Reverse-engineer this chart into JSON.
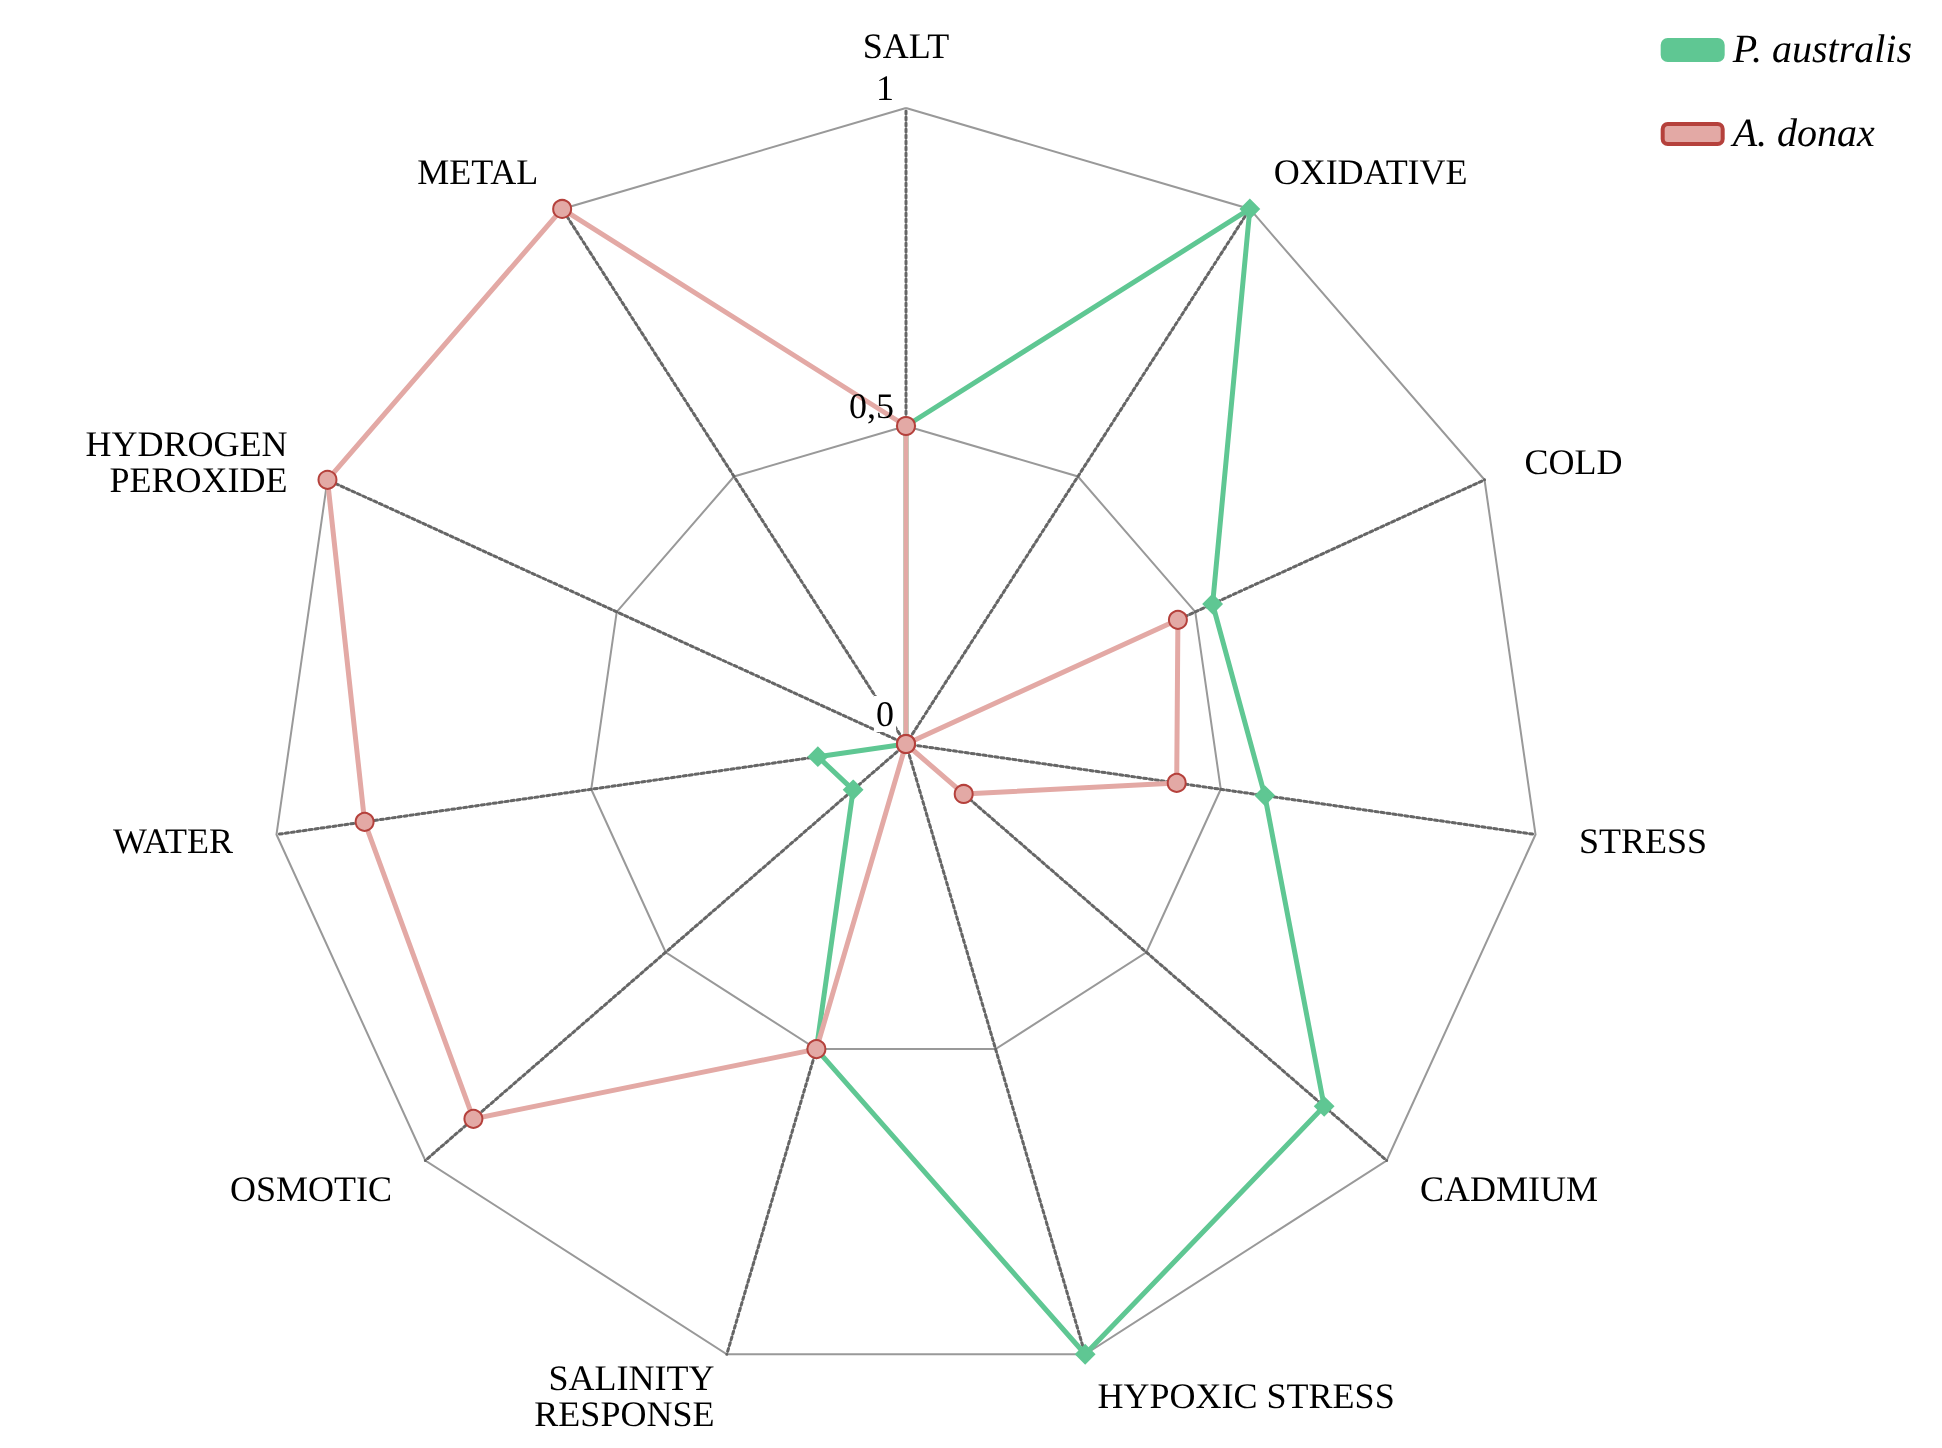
{
  "chart_data": {
    "type": "radar",
    "categories": [
      "SALT",
      "OXIDATIVE",
      "COLD",
      "STRESS",
      "CADMIUM",
      "HYPOXIC STRESS",
      "SALINITY\nRESPONSE",
      "OSMOTIC",
      "WATER",
      "HYDROGEN\nPEROXIDE",
      "METAL"
    ],
    "series": [
      {
        "name": "P. australis",
        "color": "#5fc793",
        "marker": "diamond",
        "values": [
          0.5,
          1.0,
          0.53,
          0.57,
          0.87,
          1.0,
          0.5,
          0.11,
          0.14,
          0,
          0
        ]
      },
      {
        "name": "A. donax",
        "color": "#e3a9a5",
        "marker": "circle",
        "values": [
          0.5,
          0,
          0.47,
          0.43,
          0.12,
          0,
          0.5,
          0.9,
          0.86,
          1.0,
          1.0
        ]
      }
    ],
    "ylim": [
      0,
      1
    ],
    "yticks": [
      {
        "value": 0,
        "label": "0"
      },
      {
        "value": 0.5,
        "label": "0,5"
      },
      {
        "value": 1,
        "label": "1"
      }
    ],
    "legend": "top right",
    "grid": true
  }
}
